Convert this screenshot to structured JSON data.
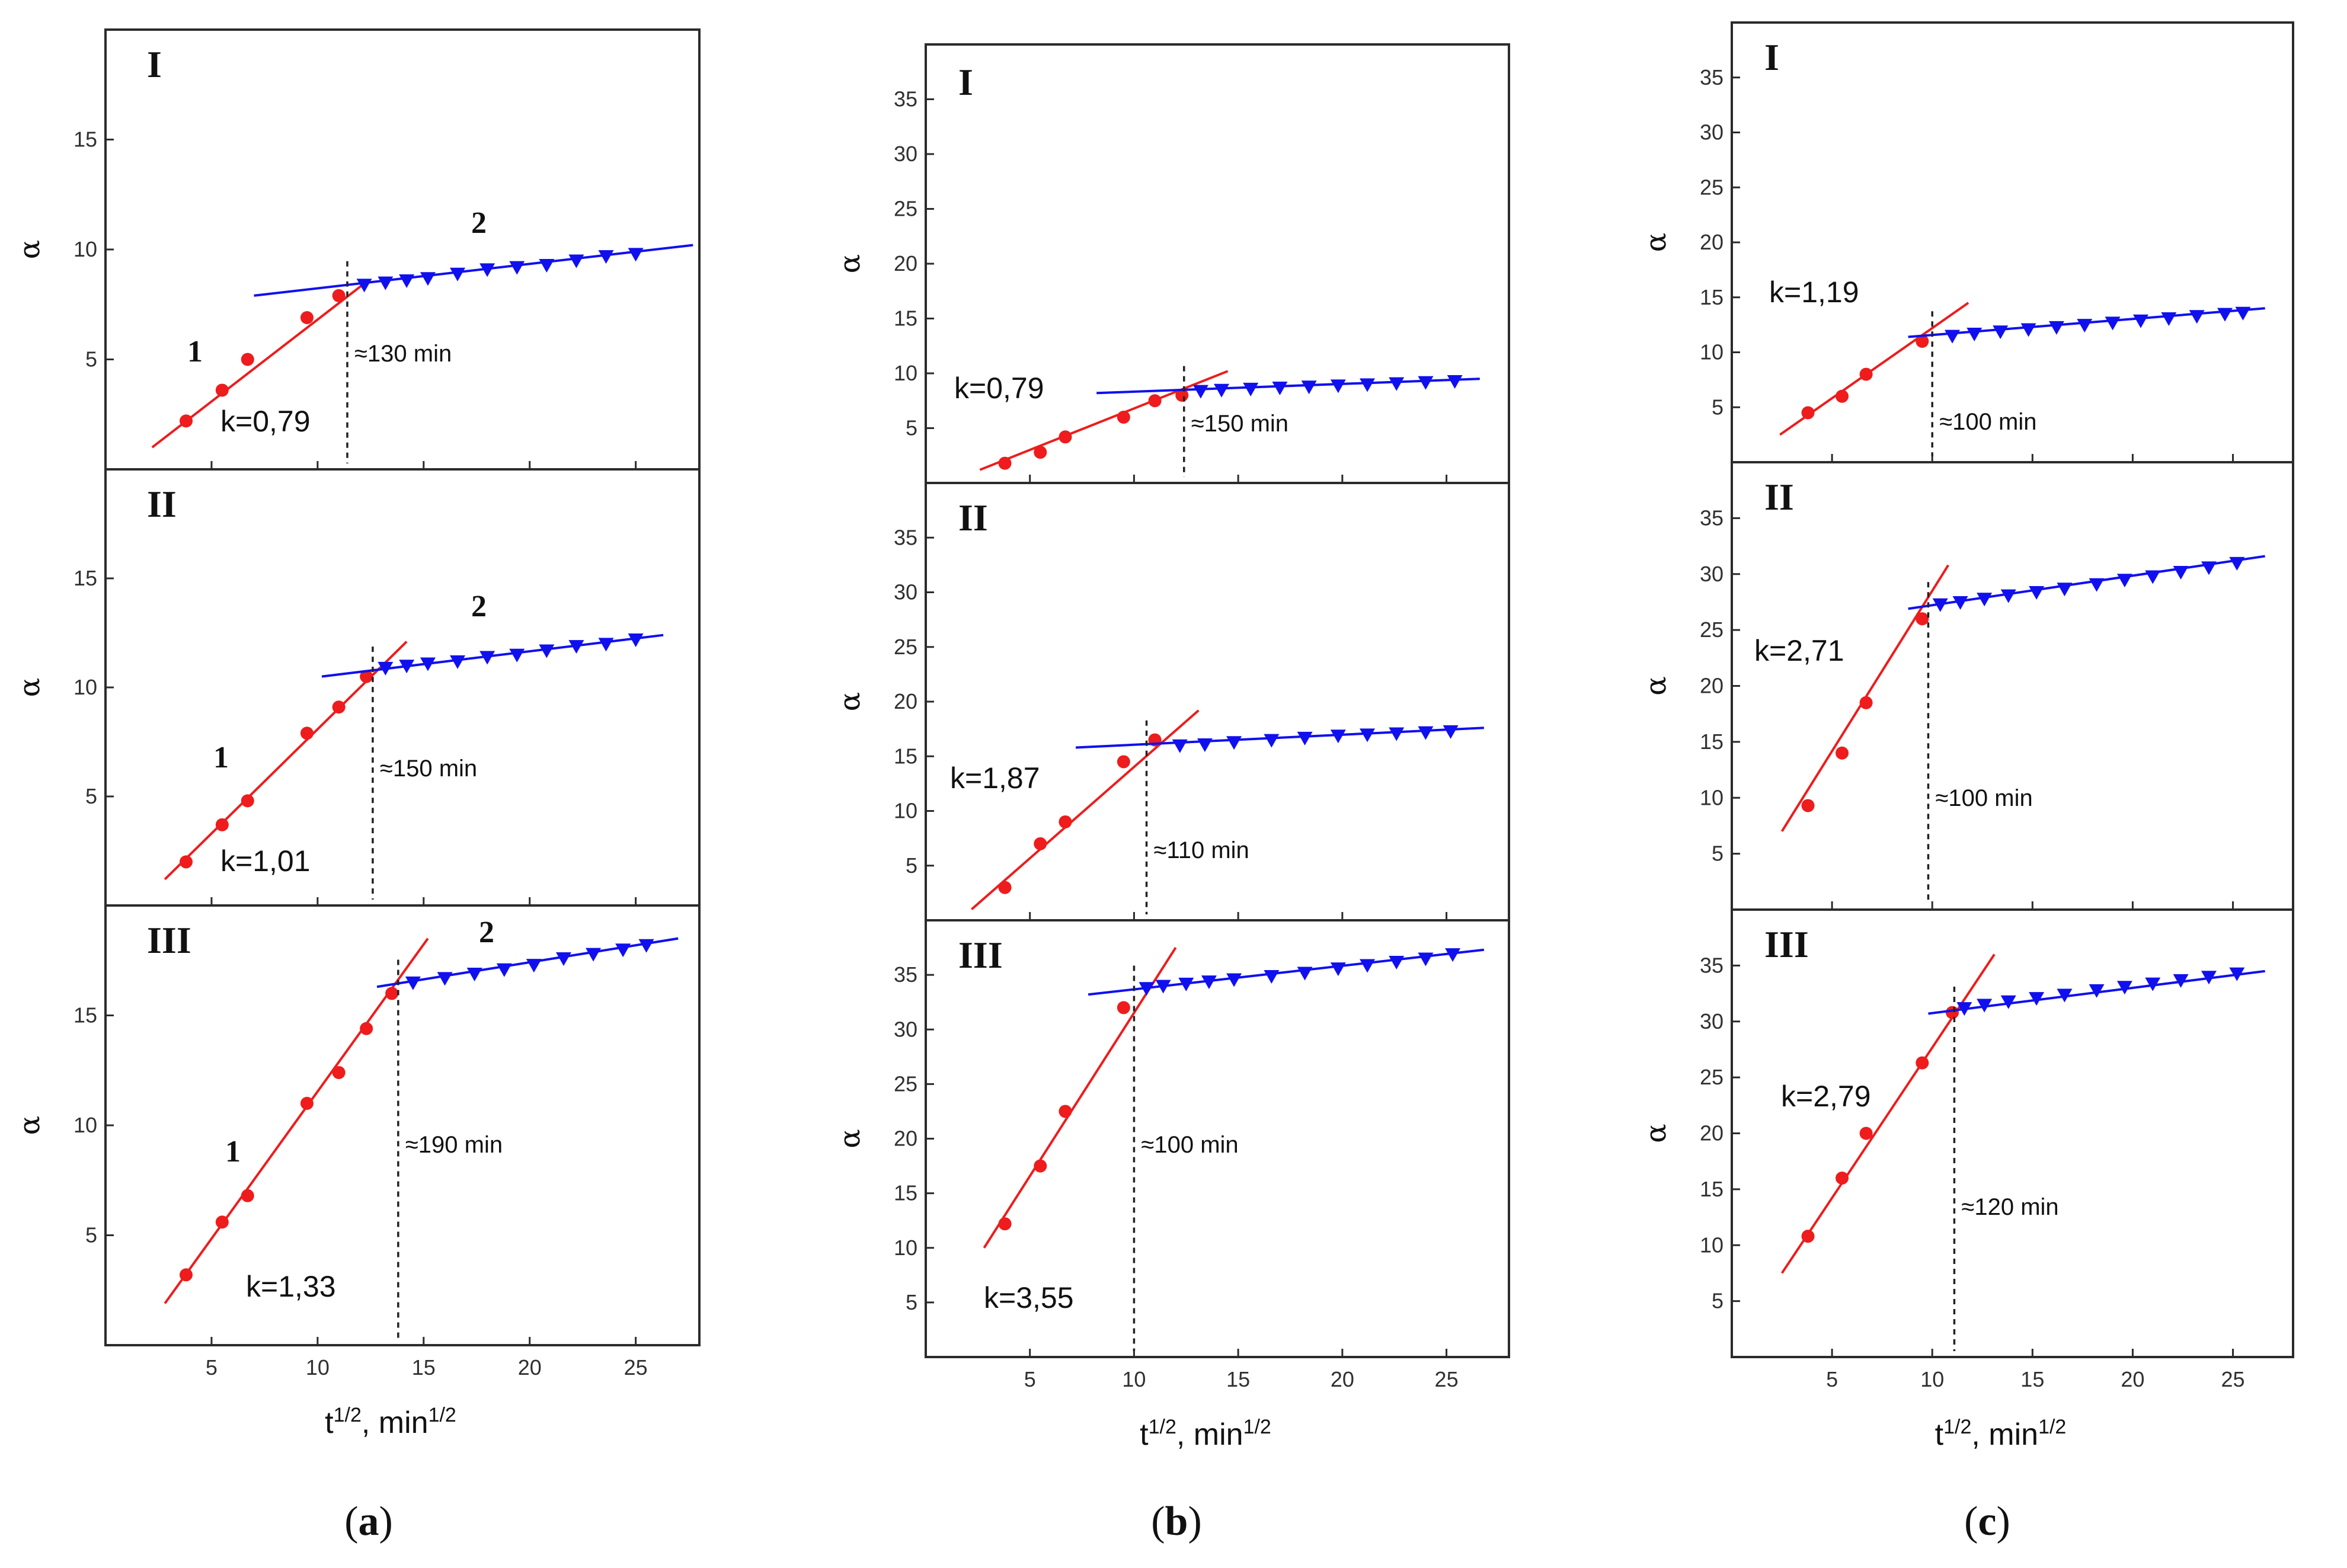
{
  "chart_data": [
    {
      "type": "scatter",
      "column": "a",
      "panel": "I",
      "xlabel": "t1/2, min1/2",
      "ylabel": "α",
      "xlim": [
        0,
        28
      ],
      "ylim": [
        0,
        20
      ],
      "xticks": [
        5,
        10,
        15,
        20
      ],
      "yticks": [
        5,
        10,
        15
      ],
      "k_label": "k=0,79",
      "time_label": "≈130 min",
      "break_x": 11.4,
      "curve_labels": [
        "1",
        "2"
      ],
      "series": [
        {
          "name": "1",
          "color": "#ee1c1c",
          "marker": "circle",
          "x": [
            3.8,
            5.5,
            6.7,
            9.5,
            11.0
          ],
          "y": [
            2.2,
            3.6,
            5.0,
            6.9,
            7.9
          ],
          "fit": [
            [
              2.2,
              1.0
            ],
            [
              12.4,
              8.6
            ]
          ]
        },
        {
          "name": "2",
          "color": "#1010ee",
          "marker": "triangle",
          "x": [
            12.2,
            13.2,
            14.2,
            15.2,
            16.6,
            18.0,
            19.4,
            20.8,
            22.2,
            23.6,
            25.0
          ],
          "y": [
            8.4,
            8.5,
            8.6,
            8.7,
            8.9,
            9.1,
            9.2,
            9.3,
            9.5,
            9.7,
            9.8
          ],
          "fit": [
            [
              7.0,
              7.9
            ],
            [
              27.7,
              10.2
            ]
          ]
        }
      ]
    },
    {
      "type": "scatter",
      "column": "a",
      "panel": "II",
      "ylabel": "α",
      "xlim": [
        0,
        28
      ],
      "ylim": [
        0,
        20
      ],
      "xticks": [
        5,
        10,
        15,
        20
      ],
      "yticks": [
        5,
        10,
        15
      ],
      "k_label": "k=1,01",
      "time_label": "≈150 min",
      "break_x": 12.6,
      "curve_labels": [
        "1",
        "2"
      ],
      "series": [
        {
          "name": "1",
          "color": "#ee1c1c",
          "marker": "circle",
          "x": [
            3.8,
            5.5,
            6.7,
            9.5,
            11.0,
            12.3
          ],
          "y": [
            2.0,
            3.7,
            4.8,
            7.9,
            9.1,
            10.5
          ],
          "fit": [
            [
              2.8,
              1.2
            ],
            [
              14.2,
              12.1
            ]
          ]
        },
        {
          "name": "2",
          "color": "#1010ee",
          "marker": "triangle",
          "x": [
            13.2,
            14.2,
            15.2,
            16.6,
            18.0,
            19.4,
            20.8,
            22.2,
            23.6,
            25.0
          ],
          "y": [
            10.9,
            11.0,
            11.1,
            11.2,
            11.4,
            11.5,
            11.7,
            11.9,
            12.0,
            12.2
          ],
          "fit": [
            [
              10.2,
              10.5
            ],
            [
              26.3,
              12.4
            ]
          ]
        }
      ]
    },
    {
      "type": "scatter",
      "column": "a",
      "panel": "III",
      "ylabel": "α",
      "xlim": [
        0,
        28
      ],
      "ylim": [
        0,
        20
      ],
      "xticks": [
        5,
        10,
        15,
        20,
        25
      ],
      "yticks": [
        5,
        10,
        15
      ],
      "k_label": "k=1,33",
      "time_label": "≈190 min",
      "break_x": 13.8,
      "curve_labels": [
        "1",
        "2"
      ],
      "series": [
        {
          "name": "1",
          "color": "#ee1c1c",
          "marker": "circle",
          "x": [
            3.8,
            5.5,
            6.7,
            9.5,
            11.0,
            12.3,
            13.5
          ],
          "y": [
            3.2,
            5.6,
            6.8,
            11.0,
            12.4,
            14.4,
            16.0
          ],
          "fit": [
            [
              2.8,
              1.9
            ],
            [
              15.2,
              18.5
            ]
          ]
        },
        {
          "name": "2",
          "color": "#1010ee",
          "marker": "triangle",
          "x": [
            14.5,
            16.0,
            17.4,
            18.8,
            20.2,
            21.6,
            23.0,
            24.4,
            25.5
          ],
          "y": [
            16.5,
            16.7,
            16.9,
            17.1,
            17.3,
            17.6,
            17.8,
            18.0,
            18.2
          ],
          "fit": [
            [
              12.8,
              16.3
            ],
            [
              27.0,
              18.5
            ]
          ]
        }
      ]
    },
    {
      "type": "scatter",
      "column": "b",
      "panel": "I",
      "xlabel": "t1/2, min1/2",
      "ylabel": "α",
      "xlim": [
        0,
        28
      ],
      "ylim": [
        0,
        40
      ],
      "xticks": [
        5,
        10,
        15,
        20,
        25
      ],
      "yticks": [
        5,
        10,
        15,
        20,
        25,
        30,
        35
      ],
      "k_label": "k=0,79",
      "time_label": "≈150 min",
      "break_x": 12.4,
      "curve_labels": [],
      "series": [
        {
          "name": "1",
          "color": "#ee1c1c",
          "marker": "circle",
          "x": [
            3.8,
            5.5,
            6.7,
            9.5,
            11.0,
            12.3
          ],
          "y": [
            1.8,
            2.8,
            4.2,
            6.0,
            7.5,
            8.0
          ],
          "fit": [
            [
              2.6,
              1.2
            ],
            [
              14.5,
              10.2
            ]
          ]
        },
        {
          "name": "2",
          "color": "#1010ee",
          "marker": "triangle",
          "x": [
            13.2,
            14.2,
            15.6,
            17.0,
            18.4,
            19.8,
            21.2,
            22.6,
            24.0,
            25.4
          ],
          "y": [
            8.4,
            8.5,
            8.6,
            8.7,
            8.8,
            8.9,
            9.0,
            9.1,
            9.2,
            9.3
          ],
          "fit": [
            [
              8.2,
              8.2
            ],
            [
              26.6,
              9.5
            ]
          ]
        }
      ]
    },
    {
      "type": "scatter",
      "column": "b",
      "panel": "II",
      "ylabel": "α",
      "xlim": [
        0,
        28
      ],
      "ylim": [
        0,
        40
      ],
      "xticks": [
        5,
        10,
        15,
        20,
        25
      ],
      "yticks": [
        5,
        10,
        15,
        20,
        25,
        30,
        35
      ],
      "k_label": "k=1,87",
      "time_label": "≈110 min",
      "break_x": 10.6,
      "curve_labels": [],
      "series": [
        {
          "name": "1",
          "color": "#ee1c1c",
          "marker": "circle",
          "x": [
            3.8,
            5.5,
            6.7,
            9.5,
            11.0
          ],
          "y": [
            3.0,
            7.0,
            9.0,
            14.5,
            16.5
          ],
          "fit": [
            [
              2.2,
              1.0
            ],
            [
              13.1,
              19.2
            ]
          ]
        },
        {
          "name": "2",
          "color": "#1010ee",
          "marker": "triangle",
          "x": [
            12.2,
            13.4,
            14.8,
            16.6,
            18.2,
            19.8,
            21.2,
            22.6,
            24.0,
            25.2
          ],
          "y": [
            16.0,
            16.1,
            16.3,
            16.5,
            16.7,
            16.9,
            17.0,
            17.1,
            17.2,
            17.3
          ],
          "fit": [
            [
              7.2,
              15.8
            ],
            [
              26.8,
              17.6
            ]
          ]
        }
      ]
    },
    {
      "type": "scatter",
      "column": "b",
      "panel": "III",
      "ylabel": "α",
      "xlim": [
        0,
        28
      ],
      "ylim": [
        0,
        40
      ],
      "xticks": [
        5,
        10,
        15,
        20,
        25
      ],
      "yticks": [
        5,
        10,
        15,
        20,
        25,
        30,
        35
      ],
      "k_label": "k=3,55",
      "time_label": "≈100 min",
      "break_x": 10.0,
      "curve_labels": [],
      "series": [
        {
          "name": "1",
          "color": "#ee1c1c",
          "marker": "circle",
          "x": [
            3.8,
            5.5,
            6.7,
            9.5
          ],
          "y": [
            12.2,
            17.5,
            22.5,
            32.0
          ],
          "fit": [
            [
              2.8,
              10.0
            ],
            [
              12.0,
              37.5
            ]
          ]
        },
        {
          "name": "2",
          "color": "#1010ee",
          "marker": "triangle",
          "x": [
            10.6,
            11.4,
            12.5,
            13.6,
            14.8,
            16.6,
            18.2,
            19.8,
            21.2,
            22.6,
            24.0,
            25.3
          ],
          "y": [
            33.8,
            34.0,
            34.2,
            34.4,
            34.6,
            34.9,
            35.2,
            35.6,
            35.9,
            36.2,
            36.5,
            36.9
          ],
          "fit": [
            [
              7.8,
              33.2
            ],
            [
              26.8,
              37.3
            ]
          ]
        }
      ]
    },
    {
      "type": "scatter",
      "column": "c",
      "panel": "I",
      "xlabel": "t1/2, min1/2",
      "ylabel": "α",
      "xlim": [
        0,
        28
      ],
      "ylim": [
        0,
        40
      ],
      "xticks": [
        5,
        10,
        15,
        20,
        25
      ],
      "yticks": [
        5,
        10,
        15,
        20,
        25,
        30,
        35
      ],
      "k_label": "k=1,19",
      "time_label": "≈100 min",
      "break_x": 10.0,
      "curve_labels": [],
      "series": [
        {
          "name": "1",
          "color": "#ee1c1c",
          "marker": "circle",
          "x": [
            3.8,
            5.5,
            6.7,
            9.5
          ],
          "y": [
            4.5,
            6.0,
            8.0,
            11.0
          ],
          "fit": [
            [
              2.4,
              2.5
            ],
            [
              11.8,
              14.5
            ]
          ]
        },
        {
          "name": "2",
          "color": "#1010ee",
          "marker": "triangle",
          "x": [
            11.0,
            12.1,
            13.4,
            14.8,
            16.2,
            17.6,
            19.0,
            20.4,
            21.8,
            23.2,
            24.6,
            25.5
          ],
          "y": [
            11.5,
            11.7,
            11.9,
            12.1,
            12.3,
            12.5,
            12.7,
            12.9,
            13.1,
            13.3,
            13.5,
            13.6
          ],
          "fit": [
            [
              8.8,
              11.4
            ],
            [
              26.6,
              14.0
            ]
          ]
        }
      ]
    },
    {
      "type": "scatter",
      "column": "c",
      "panel": "II",
      "ylabel": "α",
      "xlim": [
        0,
        28
      ],
      "ylim": [
        0,
        40
      ],
      "xticks": [
        5,
        10,
        15,
        20,
        25
      ],
      "yticks": [
        5,
        10,
        15,
        20,
        25,
        30,
        35
      ],
      "k_label": "k=2,71",
      "time_label": "≈100 min",
      "break_x": 9.8,
      "curve_labels": [],
      "series": [
        {
          "name": "1",
          "color": "#ee1c1c",
          "marker": "circle",
          "x": [
            3.8,
            5.5,
            6.7,
            9.5
          ],
          "y": [
            9.3,
            14.0,
            18.5,
            26.0
          ],
          "fit": [
            [
              2.5,
              7.0
            ],
            [
              10.8,
              30.8
            ]
          ]
        },
        {
          "name": "2",
          "color": "#1010ee",
          "marker": "triangle",
          "x": [
            10.4,
            11.4,
            12.6,
            13.8,
            15.2,
            16.6,
            18.2,
            19.6,
            21.0,
            22.4,
            23.8,
            25.2
          ],
          "y": [
            27.3,
            27.5,
            27.8,
            28.1,
            28.4,
            28.7,
            29.1,
            29.5,
            29.8,
            30.2,
            30.6,
            31.0
          ],
          "fit": [
            [
              8.8,
              26.9
            ],
            [
              26.6,
              31.6
            ]
          ]
        }
      ]
    },
    {
      "type": "scatter",
      "column": "c",
      "panel": "III",
      "ylabel": "α",
      "xlim": [
        0,
        28
      ],
      "ylim": [
        0,
        40
      ],
      "xticks": [
        5,
        10,
        15,
        20,
        25
      ],
      "yticks": [
        5,
        10,
        15,
        20,
        25,
        30,
        35
      ],
      "k_label": "k=2,79",
      "time_label": "≈120 min",
      "break_x": 11.1,
      "curve_labels": [],
      "series": [
        {
          "name": "1",
          "color": "#ee1c1c",
          "marker": "circle",
          "x": [
            3.8,
            5.5,
            6.7,
            9.5,
            11.0
          ],
          "y": [
            10.8,
            16.0,
            20.0,
            26.3,
            30.8
          ],
          "fit": [
            [
              2.5,
              7.5
            ],
            [
              13.1,
              36.0
            ]
          ]
        },
        {
          "name": "2",
          "color": "#1010ee",
          "marker": "triangle",
          "x": [
            11.6,
            12.6,
            13.8,
            15.2,
            16.6,
            18.2,
            19.6,
            21.0,
            22.4,
            23.8,
            25.2
          ],
          "y": [
            31.2,
            31.5,
            31.8,
            32.1,
            32.4,
            32.8,
            33.1,
            33.4,
            33.7,
            34.0,
            34.3
          ],
          "fit": [
            [
              9.8,
              30.7
            ],
            [
              26.6,
              34.5
            ]
          ]
        }
      ]
    }
  ],
  "subplot_labels": [
    "a",
    "b",
    "c"
  ]
}
